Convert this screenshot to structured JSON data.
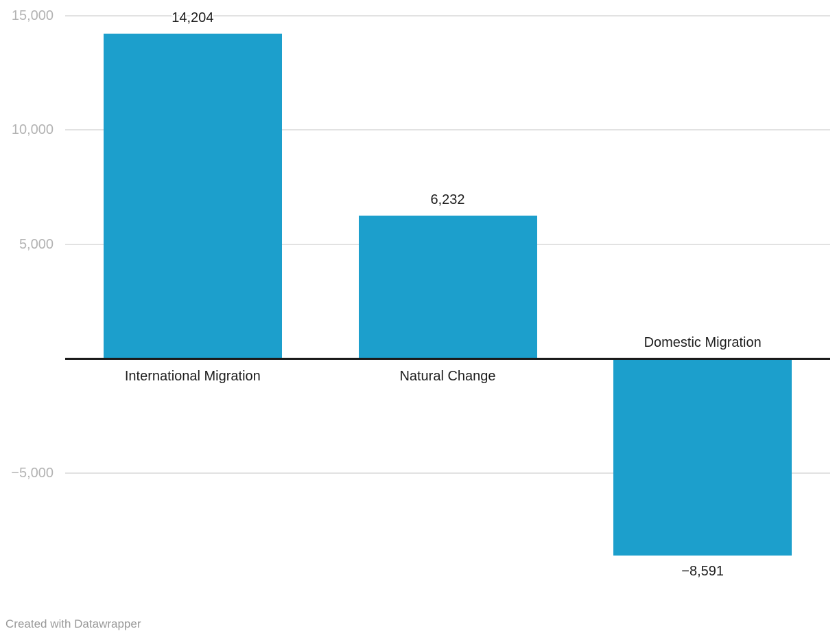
{
  "chart_data": {
    "type": "bar",
    "categories": [
      "International Migration",
      "Natural Change",
      "Domestic Migration"
    ],
    "values": [
      14204,
      6232,
      -8591
    ],
    "value_labels": [
      "14,204",
      "6,232",
      "−8,591"
    ],
    "title": "",
    "xlabel": "",
    "ylabel": "",
    "y_ticks": [
      {
        "value": 15000,
        "label": "15,000"
      },
      {
        "value": 10000,
        "label": "10,000"
      },
      {
        "value": 5000,
        "label": "5,000"
      },
      {
        "value": -5000,
        "label": "−5,000"
      }
    ],
    "ylim": [
      -10800,
      15000
    ],
    "grid": true,
    "legend": false,
    "colors": {
      "bar": "#1C9FCC",
      "baseline": "#1a1a1a",
      "gridline": "#e2e2e2",
      "tick_label": "#b3b3b3",
      "data_label": "#1d1d1d",
      "category_label": "#1d1d1d"
    }
  },
  "footer": {
    "attribution": "Created with Datawrapper"
  }
}
